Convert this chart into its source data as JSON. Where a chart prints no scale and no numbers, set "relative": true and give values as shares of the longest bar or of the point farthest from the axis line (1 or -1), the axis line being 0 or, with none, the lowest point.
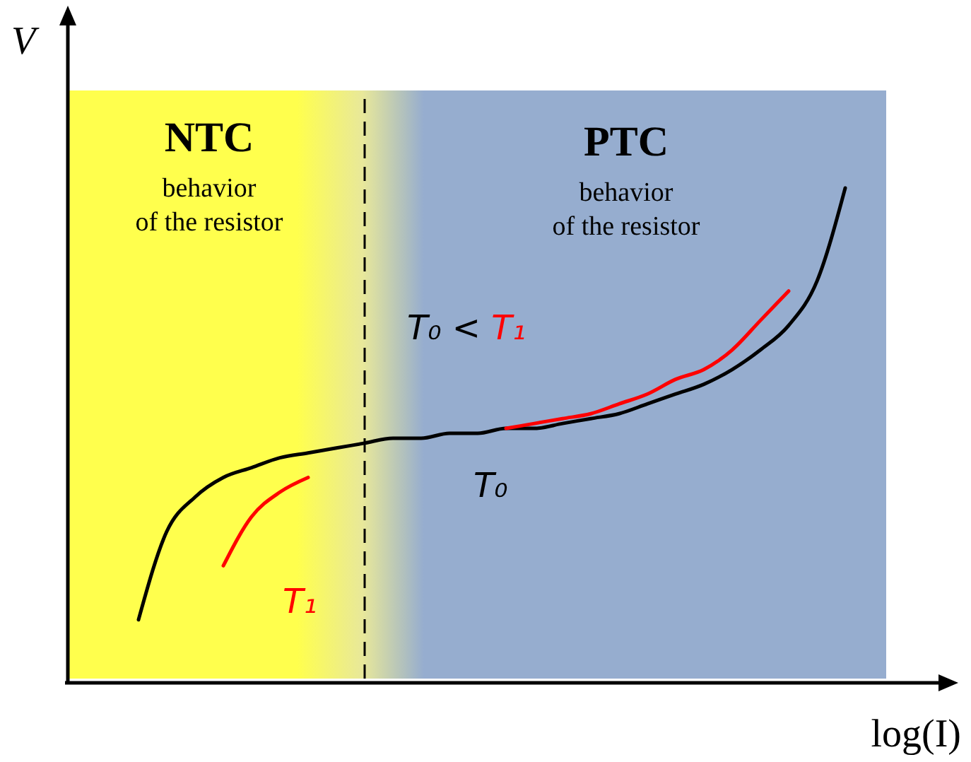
{
  "chart_data": {
    "type": "line",
    "xlabel": "log(I)",
    "ylabel": "V",
    "relative": true,
    "marker": "none",
    "line_style": "solid",
    "categories": [
      null,
      null,
      null,
      null,
      null,
      null,
      null,
      null,
      null,
      null,
      null,
      null,
      null,
      null,
      null,
      null,
      null,
      null,
      null,
      null,
      null,
      null,
      null,
      null,
      null,
      null,
      null,
      null,
      null,
      null
    ],
    "series": [
      {
        "name": "T₀",
        "color": "#000000",
        "values": [
          null,
          null,
          0.12,
          0.3,
          0.37,
          0.41,
          0.43,
          0.45,
          0.46,
          0.47,
          0.48,
          0.49,
          0.49,
          0.5,
          0.5,
          0.51,
          0.51,
          0.52,
          0.53,
          0.54,
          0.56,
          0.58,
          0.6,
          0.63,
          0.67,
          0.72,
          0.81,
          1,
          null,
          null
        ]
      },
      {
        "name": "T₁",
        "color": "#ff0000",
        "values": [
          null,
          null,
          null,
          null,
          null,
          0.23,
          0.33,
          0.38,
          0.41,
          null,
          null,
          null,
          null,
          null,
          null,
          0.51,
          0.52,
          0.53,
          0.54,
          0.56,
          0.58,
          0.61,
          0.63,
          0.67,
          0.73,
          0.79,
          null,
          null,
          null,
          null
        ]
      }
    ],
    "annotations": [
      "NTC",
      "behavior\nof the resistor",
      "PTC",
      "behavior\nof the resistor",
      "T₀ < T₁"
    ]
  }
}
